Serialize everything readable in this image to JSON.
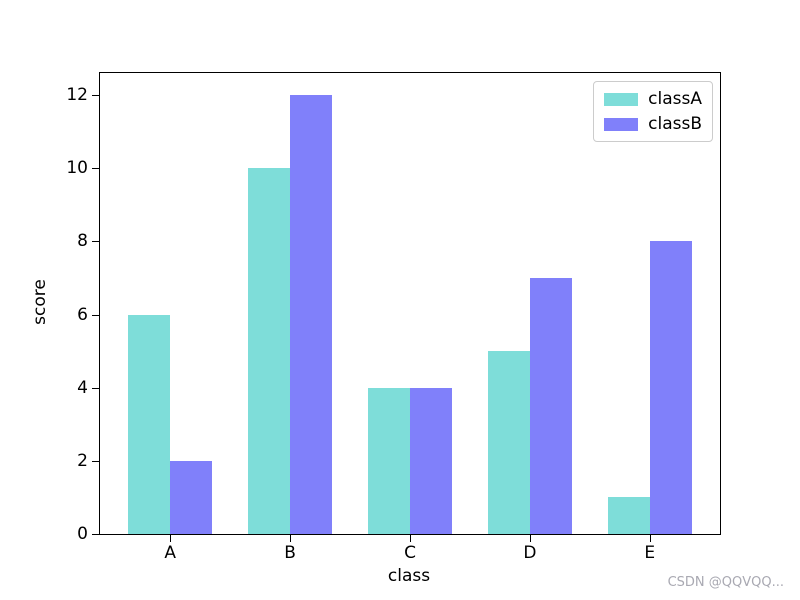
{
  "watermark": "CSDN @QQVQQ...",
  "chart_data": {
    "type": "bar",
    "categories": [
      "A",
      "B",
      "C",
      "D",
      "E"
    ],
    "series": [
      {
        "name": "classA",
        "color": "#7eddd9",
        "values": [
          6,
          10,
          4,
          5,
          1
        ]
      },
      {
        "name": "classB",
        "color": "#8080fa",
        "values": [
          2,
          12,
          4,
          7,
          8
        ]
      }
    ],
    "title": "",
    "xlabel": "class",
    "ylabel": "score",
    "ylim": [
      0,
      12.6
    ],
    "yticks": [
      0,
      2,
      4,
      6,
      8,
      10,
      12
    ],
    "bar_width": 0.35,
    "legend_position": "upper right",
    "grid": false
  }
}
